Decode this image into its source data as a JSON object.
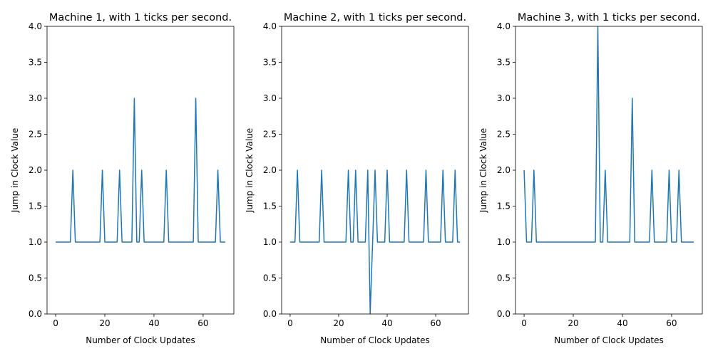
{
  "chart_data": [
    {
      "type": "line",
      "title": "Machine 1, with 1 ticks per second.",
      "xlabel": "Number of Clock Updates",
      "ylabel": "Jump in Clock Value",
      "xlim": [
        -3.5,
        72.5
      ],
      "ylim": [
        0,
        4
      ],
      "xticks": [
        0,
        20,
        40,
        60
      ],
      "yticks": [
        0.0,
        0.5,
        1.0,
        1.5,
        2.0,
        2.5,
        3.0,
        3.5,
        4.0
      ],
      "grid": false,
      "color": "#1f77b4",
      "series": [
        {
          "x": [
            0,
            1,
            2,
            3,
            4,
            5,
            6,
            7,
            8,
            9,
            10,
            11,
            12,
            13,
            14,
            15,
            16,
            17,
            18,
            19,
            20,
            21,
            22,
            23,
            24,
            25,
            26,
            27,
            28,
            29,
            30,
            31,
            32,
            33,
            34,
            35,
            36,
            37,
            38,
            39,
            40,
            41,
            42,
            43,
            44,
            45,
            46,
            47,
            48,
            49,
            50,
            51,
            52,
            53,
            54,
            55,
            56,
            57,
            58,
            59,
            60,
            61,
            62,
            63,
            64,
            65,
            66,
            67,
            68,
            69
          ],
          "y": [
            1,
            1,
            1,
            1,
            1,
            1,
            1,
            2,
            1,
            1,
            1,
            1,
            1,
            1,
            1,
            1,
            1,
            1,
            1,
            2,
            1,
            1,
            1,
            1,
            1,
            1,
            2,
            1,
            1,
            1,
            1,
            1,
            3,
            1,
            1,
            2,
            1,
            1,
            1,
            1,
            1,
            1,
            1,
            1,
            1,
            2,
            1,
            1,
            1,
            1,
            1,
            1,
            1,
            1,
            1,
            1,
            1,
            3,
            1,
            1,
            1,
            1,
            1,
            1,
            1,
            1,
            2,
            1,
            1,
            1
          ]
        }
      ]
    },
    {
      "type": "line",
      "title": "Machine 2, with 1 ticks per second.",
      "xlabel": "Number of Clock Updates",
      "ylabel": "Jump in Clock Value",
      "xlim": [
        -3.5,
        73.5
      ],
      "ylim": [
        0,
        4
      ],
      "xticks": [
        0,
        20,
        40,
        60
      ],
      "yticks": [
        0.0,
        0.5,
        1.0,
        1.5,
        2.0,
        2.5,
        3.0,
        3.5,
        4.0
      ],
      "grid": false,
      "color": "#1f77b4",
      "series": [
        {
          "x": [
            0,
            1,
            2,
            3,
            4,
            5,
            6,
            7,
            8,
            9,
            10,
            11,
            12,
            13,
            14,
            15,
            16,
            17,
            18,
            19,
            20,
            21,
            22,
            23,
            24,
            25,
            26,
            27,
            28,
            29,
            30,
            31,
            32,
            33,
            34,
            35,
            36,
            37,
            38,
            39,
            40,
            41,
            42,
            43,
            44,
            45,
            46,
            47,
            48,
            49,
            50,
            51,
            52,
            53,
            54,
            55,
            56,
            57,
            58,
            59,
            60,
            61,
            62,
            63,
            64,
            65,
            66,
            67,
            68,
            69,
            70
          ],
          "y": [
            1,
            1,
            1,
            2,
            1,
            1,
            1,
            1,
            1,
            1,
            1,
            1,
            1,
            2,
            1,
            1,
            1,
            1,
            1,
            1,
            1,
            1,
            1,
            1,
            2,
            1,
            1,
            2,
            1,
            1,
            1,
            1,
            2,
            0,
            1,
            2,
            1,
            1,
            1,
            1,
            2,
            1,
            1,
            1,
            1,
            1,
            1,
            1,
            2,
            1,
            1,
            1,
            1,
            1,
            1,
            1,
            2,
            1,
            1,
            1,
            1,
            1,
            1,
            2,
            1,
            1,
            1,
            1,
            2,
            1,
            1
          ]
        }
      ]
    },
    {
      "type": "line",
      "title": "Machine 3, with 1 ticks per second.",
      "xlabel": "Number of Clock Updates",
      "ylabel": "Jump in Clock Value",
      "xlim": [
        -3.5,
        72.5
      ],
      "ylim": [
        0,
        4
      ],
      "xticks": [
        0,
        20,
        40,
        60
      ],
      "yticks": [
        0.0,
        0.5,
        1.0,
        1.5,
        2.0,
        2.5,
        3.0,
        3.5,
        4.0
      ],
      "grid": false,
      "color": "#1f77b4",
      "series": [
        {
          "x": [
            0,
            1,
            2,
            3,
            4,
            5,
            6,
            7,
            8,
            9,
            10,
            11,
            12,
            13,
            14,
            15,
            16,
            17,
            18,
            19,
            20,
            21,
            22,
            23,
            24,
            25,
            26,
            27,
            28,
            29,
            30,
            31,
            32,
            33,
            34,
            35,
            36,
            37,
            38,
            39,
            40,
            41,
            42,
            43,
            44,
            45,
            46,
            47,
            48,
            49,
            50,
            51,
            52,
            53,
            54,
            55,
            56,
            57,
            58,
            59,
            60,
            61,
            62,
            63,
            64,
            65,
            66,
            67,
            68,
            69
          ],
          "y": [
            2,
            1,
            1,
            1,
            2,
            1,
            1,
            1,
            1,
            1,
            1,
            1,
            1,
            1,
            1,
            1,
            1,
            1,
            1,
            1,
            1,
            1,
            1,
            1,
            1,
            1,
            1,
            1,
            1,
            1,
            4,
            1,
            1,
            2,
            1,
            1,
            1,
            1,
            1,
            1,
            1,
            1,
            1,
            1,
            3,
            1,
            1,
            1,
            1,
            1,
            1,
            1,
            2,
            1,
            1,
            1,
            1,
            1,
            1,
            2,
            1,
            1,
            1,
            2,
            1,
            1,
            1,
            1,
            1,
            1
          ]
        }
      ]
    }
  ]
}
